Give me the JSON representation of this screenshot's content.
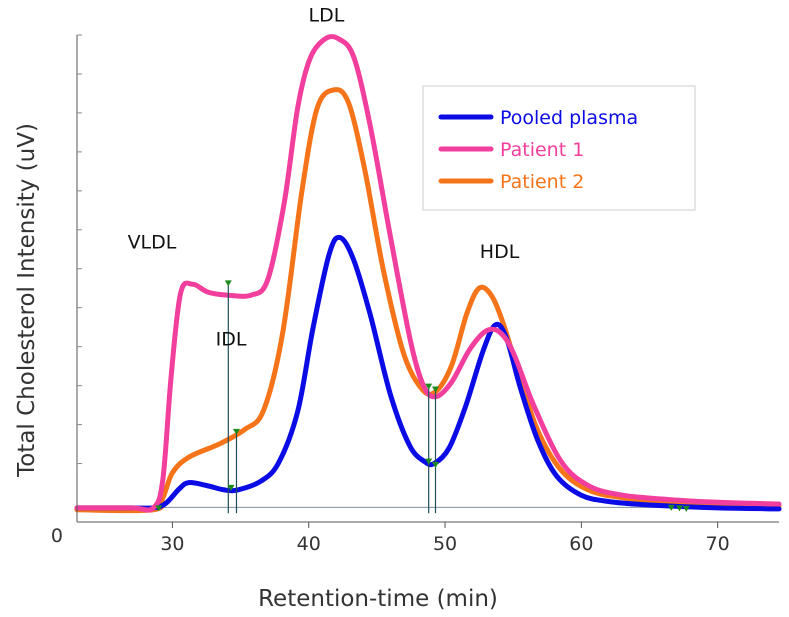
{
  "chart_data": {
    "type": "line",
    "xlabel": "Retention-time (min)",
    "ylabel": "Total Cholesterol Intensity (uV)",
    "xlim": [
      23,
      74.5
    ],
    "ylim": [
      0,
      1000
    ],
    "x_ticks": [
      "30",
      "40",
      "50",
      "60",
      "70"
    ],
    "x_tick_values": [
      30,
      40,
      50,
      60,
      70
    ],
    "y_ticks": [
      "0"
    ],
    "y_tick_values": [
      0
    ],
    "legend_position": "top-right",
    "peak_labels": [
      {
        "text": "VLDL",
        "x": 28.5,
        "y": 562
      },
      {
        "text": "IDL",
        "x": 34.3,
        "y": 362
      },
      {
        "text": "LDL",
        "x": 41.3,
        "y": 1028
      },
      {
        "text": "HDL",
        "x": 54.0,
        "y": 542
      }
    ],
    "series": [
      {
        "name": "Pooled plasma",
        "color": "#0b0be6",
        "points": [
          [
            23,
            29
          ],
          [
            27,
            29
          ],
          [
            28.6,
            29
          ],
          [
            29.5,
            38
          ],
          [
            30.5,
            68
          ],
          [
            31.2,
            81
          ],
          [
            32.5,
            75
          ],
          [
            33.8,
            66
          ],
          [
            34.8,
            66
          ],
          [
            36.5,
            84
          ],
          [
            37.8,
            122
          ],
          [
            39.2,
            228
          ],
          [
            40.3,
            396
          ],
          [
            41.5,
            550
          ],
          [
            42.3,
            584
          ],
          [
            43.3,
            538
          ],
          [
            44.5,
            427
          ],
          [
            46,
            261
          ],
          [
            47.4,
            157
          ],
          [
            48.5,
            124
          ],
          [
            49.2,
            120
          ],
          [
            50.3,
            152
          ],
          [
            51.5,
            237
          ],
          [
            52.8,
            352
          ],
          [
            53.7,
            405
          ],
          [
            54.5,
            378
          ],
          [
            55.5,
            278
          ],
          [
            56.8,
            168
          ],
          [
            58.2,
            94
          ],
          [
            60,
            55
          ],
          [
            62,
            42
          ],
          [
            65,
            35
          ],
          [
            70,
            29
          ],
          [
            74.5,
            27
          ]
        ]
      },
      {
        "name": "Patient 1",
        "color": "#f23e9c",
        "points": [
          [
            23,
            29
          ],
          [
            27,
            29
          ],
          [
            28.6,
            29
          ],
          [
            29.3,
            88
          ],
          [
            29.9,
            298
          ],
          [
            30.6,
            470
          ],
          [
            31.5,
            488
          ],
          [
            32.6,
            472
          ],
          [
            34,
            466
          ],
          [
            35.8,
            466
          ],
          [
            37,
            498
          ],
          [
            38.2,
            655
          ],
          [
            39.2,
            852
          ],
          [
            40.1,
            952
          ],
          [
            41.2,
            992
          ],
          [
            42.2,
            992
          ],
          [
            43.3,
            955
          ],
          [
            44.5,
            815
          ],
          [
            46,
            585
          ],
          [
            47.5,
            367
          ],
          [
            48.5,
            275
          ],
          [
            49.4,
            258
          ],
          [
            50.5,
            288
          ],
          [
            51.8,
            354
          ],
          [
            53,
            392
          ],
          [
            54,
            390
          ],
          [
            55,
            348
          ],
          [
            56.5,
            240
          ],
          [
            58.5,
            125
          ],
          [
            60.5,
            75
          ],
          [
            63,
            55
          ],
          [
            67,
            45
          ],
          [
            70.5,
            40
          ],
          [
            74.5,
            37
          ]
        ]
      },
      {
        "name": "Patient 2",
        "color": "#f5741a",
        "points": [
          [
            23,
            25
          ],
          [
            28.6,
            25
          ],
          [
            29.3,
            50
          ],
          [
            30,
            101
          ],
          [
            31.2,
            133
          ],
          [
            33.5,
            161
          ],
          [
            35.3,
            190
          ],
          [
            36.7,
            230
          ],
          [
            38.1,
            390
          ],
          [
            39.5,
            679
          ],
          [
            40.6,
            848
          ],
          [
            41.8,
            887
          ],
          [
            42.9,
            862
          ],
          [
            44.1,
            725
          ],
          [
            45.5,
            514
          ],
          [
            47,
            343
          ],
          [
            48.4,
            270
          ],
          [
            49.4,
            270
          ],
          [
            50.5,
            323
          ],
          [
            51.6,
            428
          ],
          [
            52.5,
            480
          ],
          [
            53.4,
            465
          ],
          [
            54.3,
            405
          ],
          [
            55.5,
            296
          ],
          [
            56.8,
            188
          ],
          [
            58.5,
            107
          ],
          [
            60.5,
            66
          ],
          [
            63,
            50
          ],
          [
            67,
            40
          ],
          [
            70.5,
            35
          ],
          [
            74.5,
            32
          ]
        ]
      },
      {
        "name": "",
        "color": "#7b8fa0",
        "points": [
          [
            23,
            30
          ],
          [
            74.5,
            30
          ]
        ]
      }
    ],
    "markers": [
      {
        "x": 34.1,
        "y_bottom": 18,
        "y_top": 490
      },
      {
        "x": 34.7,
        "y_bottom": 18,
        "y_top": 185
      },
      {
        "x": 48.8,
        "y_bottom": 18,
        "y_top": 278
      },
      {
        "x": 49.3,
        "y_bottom": 18,
        "y_top": 272
      }
    ],
    "marker_points": [
      [
        29.0,
        28
      ],
      [
        34.1,
        490
      ],
      [
        34.3,
        70
      ],
      [
        34.7,
        185
      ],
      [
        48.8,
        278
      ],
      [
        48.8,
        124
      ],
      [
        49.3,
        272
      ],
      [
        49.3,
        117
      ],
      [
        66.6,
        29
      ],
      [
        67.2,
        28
      ],
      [
        67.7,
        27
      ]
    ]
  }
}
